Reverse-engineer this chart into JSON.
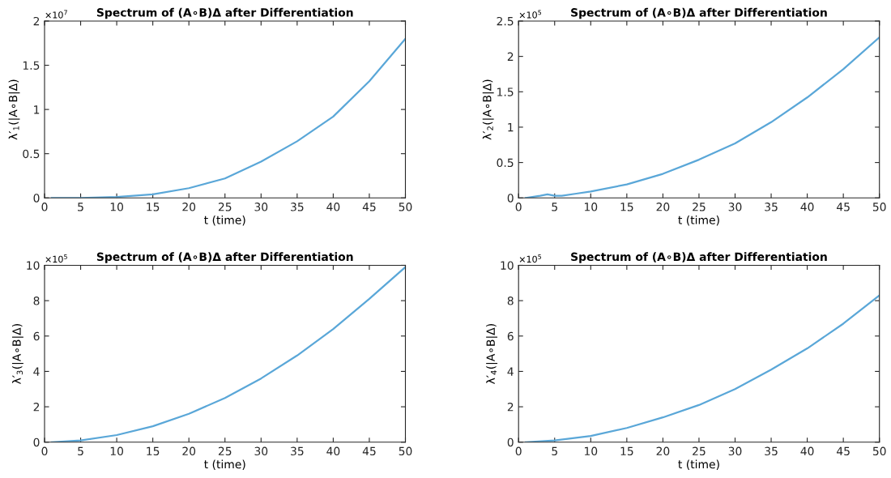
{
  "chart_data": [
    {
      "type": "line",
      "title": "Spectrum of (A∘B)Δ after Differentiation",
      "xlabel": "t (time)",
      "ylabel": "λ′$_{1}$(|A∘B|Δ)",
      "annotations": [
        "×10$^{7}$"
      ],
      "x": [
        1,
        5,
        10,
        15,
        20,
        25,
        30,
        35,
        40,
        45,
        50
      ],
      "series": [
        {
          "color": "#5aa7d8",
          "values": [
            0,
            0,
            0.01,
            0.04,
            0.11,
            0.22,
            0.41,
            0.64,
            0.92,
            1.32,
            1.8
          ]
        }
      ],
      "xlim": [
        0,
        50
      ],
      "xticks": [
        0,
        5,
        10,
        15,
        20,
        25,
        30,
        35,
        40,
        45,
        50
      ],
      "ylim": [
        0,
        2
      ],
      "yticks": [
        0,
        0.5,
        1,
        1.5,
        2
      ],
      "grid": false,
      "legend": false
    },
    {
      "type": "line",
      "title": "Spectrum of (A∘B)Δ after Differentiation",
      "xlabel": "t (time)",
      "ylabel": "λ′$_{2}$(|A∘B|Δ)",
      "annotations": [
        "×10$^{5}$"
      ],
      "x": [
        1,
        3,
        4,
        5,
        6,
        8,
        10,
        15,
        20,
        25,
        30,
        35,
        40,
        45,
        50
      ],
      "series": [
        {
          "color": "#5aa7d8",
          "values": [
            0,
            0.03,
            0.05,
            0.03,
            0.03,
            0.06,
            0.09,
            0.19,
            0.34,
            0.54,
            0.77,
            1.07,
            1.42,
            1.82,
            2.27
          ]
        }
      ],
      "xlim": [
        0,
        50
      ],
      "xticks": [
        0,
        5,
        10,
        15,
        20,
        25,
        30,
        35,
        40,
        45,
        50
      ],
      "ylim": [
        0,
        2.5
      ],
      "yticks": [
        0,
        0.5,
        1,
        1.5,
        2,
        2.5
      ],
      "grid": false,
      "legend": false
    },
    {
      "type": "line",
      "title": "Spectrum of (A∘B)Δ after Differentiation",
      "xlabel": "t (time)",
      "ylabel": "λ′$_{3}$(|A∘B|Δ)",
      "annotations": [
        "×10$^{5}$"
      ],
      "x": [
        1,
        5,
        10,
        15,
        20,
        25,
        30,
        35,
        40,
        45,
        50
      ],
      "series": [
        {
          "color": "#5aa7d8",
          "values": [
            0,
            0.1,
            0.4,
            0.9,
            1.6,
            2.5,
            3.6,
            4.9,
            6.4,
            8.1,
            9.9
          ]
        }
      ],
      "xlim": [
        0,
        50
      ],
      "xticks": [
        0,
        5,
        10,
        15,
        20,
        25,
        30,
        35,
        40,
        45,
        50
      ],
      "ylim": [
        0,
        10
      ],
      "yticks": [
        0,
        2,
        4,
        6,
        8,
        10
      ],
      "grid": false,
      "legend": false
    },
    {
      "type": "line",
      "title": "Spectrum of (A∘B)Δ after Differentiation",
      "xlabel": "t (time)",
      "ylabel": "λ′$_{4}$(|A∘B|Δ)",
      "annotations": [
        "×10$^{5}$"
      ],
      "x": [
        1,
        5,
        10,
        15,
        20,
        25,
        30,
        35,
        40,
        45,
        50
      ],
      "series": [
        {
          "color": "#5aa7d8",
          "values": [
            0,
            0.1,
            0.35,
            0.8,
            1.4,
            2.1,
            3.0,
            4.1,
            5.3,
            6.7,
            8.3
          ]
        }
      ],
      "xlim": [
        0,
        50
      ],
      "xticks": [
        0,
        5,
        10,
        15,
        20,
        25,
        30,
        35,
        40,
        45,
        50
      ],
      "ylim": [
        0,
        10
      ],
      "yticks": [
        0,
        2,
        4,
        6,
        8,
        10
      ],
      "grid": false,
      "legend": false
    }
  ]
}
